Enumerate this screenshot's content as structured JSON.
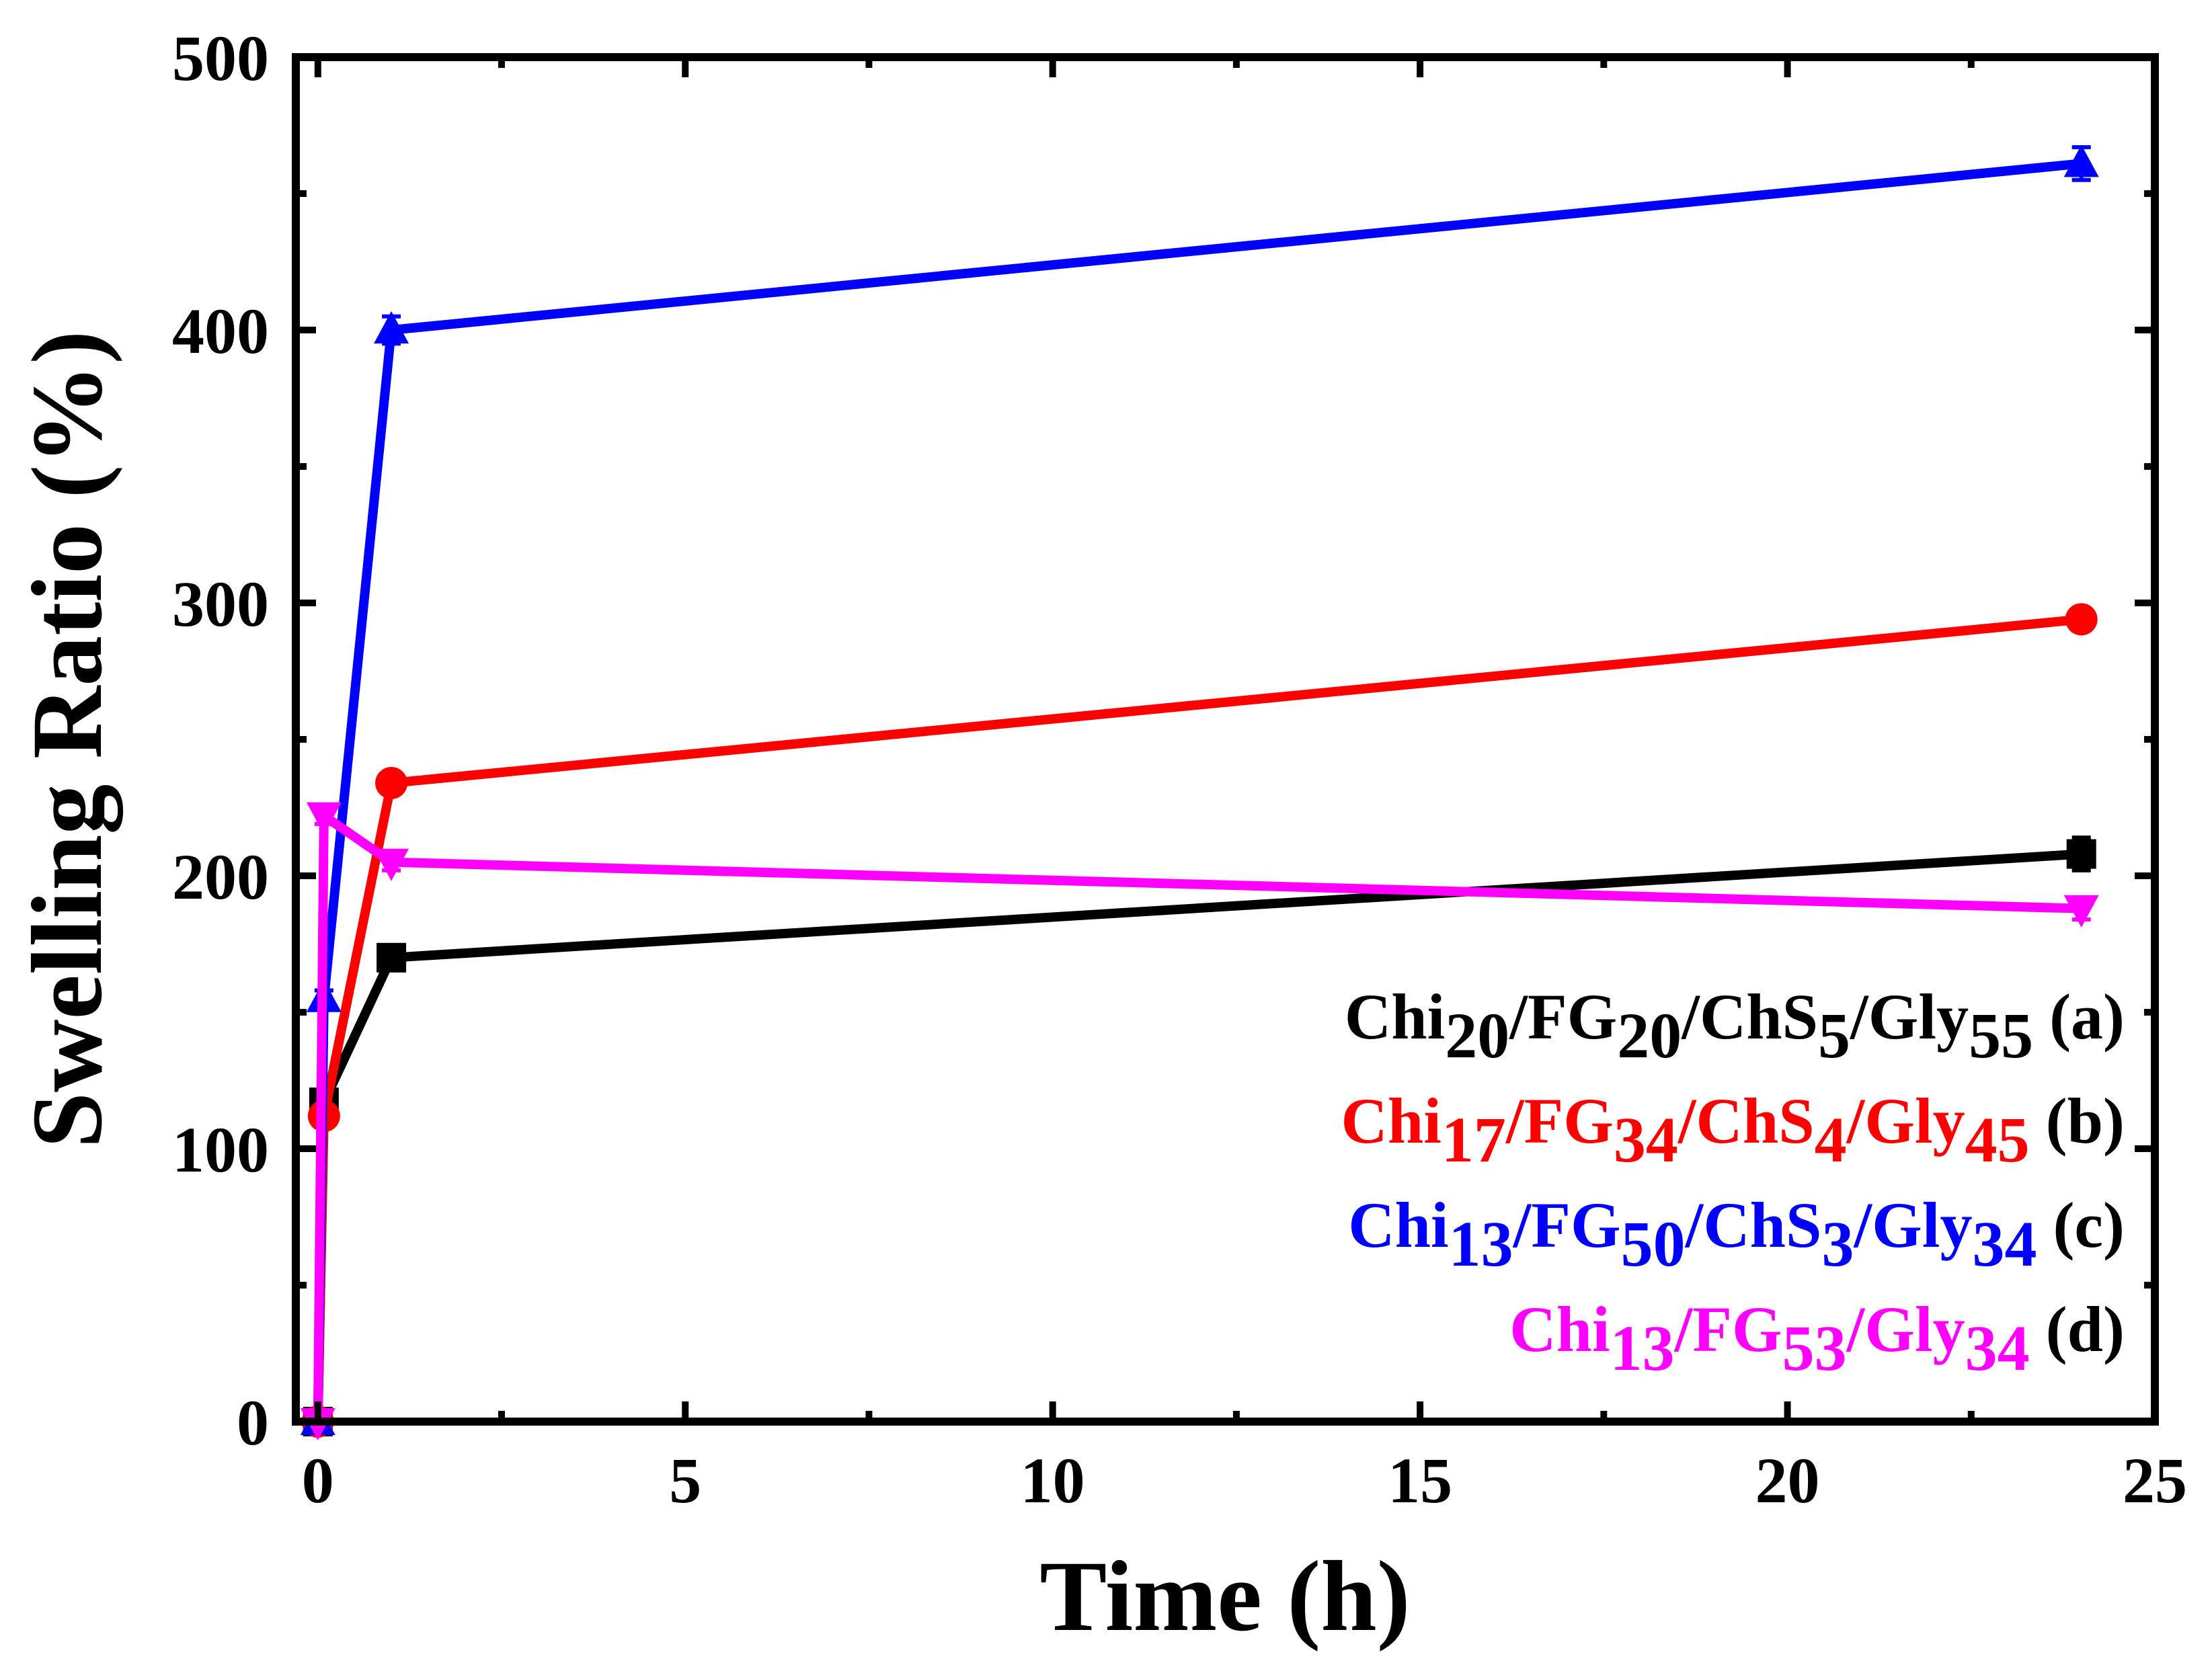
{
  "chart_data": {
    "type": "line",
    "title": "",
    "xlabel": "Time (h)",
    "ylabel": "Swelling Ratio (%)",
    "xlim": [
      -0.3,
      25
    ],
    "ylim": [
      0,
      500
    ],
    "x_ticks": [
      0,
      5,
      10,
      15,
      20,
      25
    ],
    "y_ticks": [
      0,
      100,
      200,
      300,
      400,
      500
    ],
    "x_ticks_labels": [
      "0",
      "5",
      "10",
      "15",
      "20",
      "25"
    ],
    "y_ticks_labels": [
      "0",
      "100",
      "200",
      "300",
      "400",
      "500"
    ],
    "grid": false,
    "legend_position": "bottom-right",
    "series": [
      {
        "name": "Chi20/FG20/ChS5/Gly55 (a)",
        "label_parts": [
          [
            "Chi",
            ""
          ],
          [
            "20",
            "sub"
          ],
          [
            "/FG",
            ""
          ],
          [
            "20",
            "sub"
          ],
          [
            "/ChS",
            ""
          ],
          [
            "5",
            "sub"
          ],
          [
            "/Gly",
            ""
          ],
          [
            "55",
            "sub"
          ]
        ],
        "suffix": " (a)",
        "color": "#000000",
        "marker": "square",
        "x": [
          0,
          0.083,
          1,
          24
        ],
        "y": [
          0,
          117,
          170,
          208
        ],
        "err": [
          0,
          3,
          3,
          6
        ]
      },
      {
        "name": "Chi17/FG34/ChS4/Gly45 (b)",
        "label_parts": [
          [
            "Chi",
            ""
          ],
          [
            "17",
            "sub"
          ],
          [
            "/FG",
            ""
          ],
          [
            "34",
            "sub"
          ],
          [
            "/ChS",
            ""
          ],
          [
            "4",
            "sub"
          ],
          [
            "/Gly",
            ""
          ],
          [
            "45",
            "sub"
          ]
        ],
        "suffix": " (b)",
        "color": "#ff0000",
        "marker": "circle",
        "x": [
          0,
          0.083,
          1,
          24
        ],
        "y": [
          0,
          112,
          234,
          294
        ],
        "err": [
          0,
          3,
          3,
          4
        ]
      },
      {
        "name": "Chi13/FG50/ChS3/Gly34 (c)",
        "label_parts": [
          [
            "Chi",
            ""
          ],
          [
            "13",
            "sub"
          ],
          [
            "/FG",
            ""
          ],
          [
            "50",
            "sub"
          ],
          [
            "/ChS",
            ""
          ],
          [
            "3",
            "sub"
          ],
          [
            "/Gly",
            ""
          ],
          [
            "34",
            "sub"
          ]
        ],
        "suffix": " (c)",
        "color": "#0000ff",
        "marker": "triangle-up",
        "x": [
          0,
          0.083,
          1,
          24
        ],
        "y": [
          0,
          155,
          400,
          461
        ],
        "err": [
          0,
          3,
          5,
          6
        ]
      },
      {
        "name": "Chi13/FG53/Gly34 (d)",
        "label_parts": [
          [
            "Chi",
            ""
          ],
          [
            "13",
            "sub"
          ],
          [
            "/FG",
            ""
          ],
          [
            "53",
            "sub"
          ],
          [
            "/Gly",
            ""
          ],
          [
            "34",
            "sub"
          ]
        ],
        "suffix": " (d)",
        "color": "#ff00ff",
        "marker": "triangle-down",
        "x": [
          0,
          0.083,
          1,
          24
        ],
        "y": [
          0,
          222,
          205,
          188
        ],
        "err": [
          0,
          3,
          3,
          4
        ]
      }
    ]
  }
}
